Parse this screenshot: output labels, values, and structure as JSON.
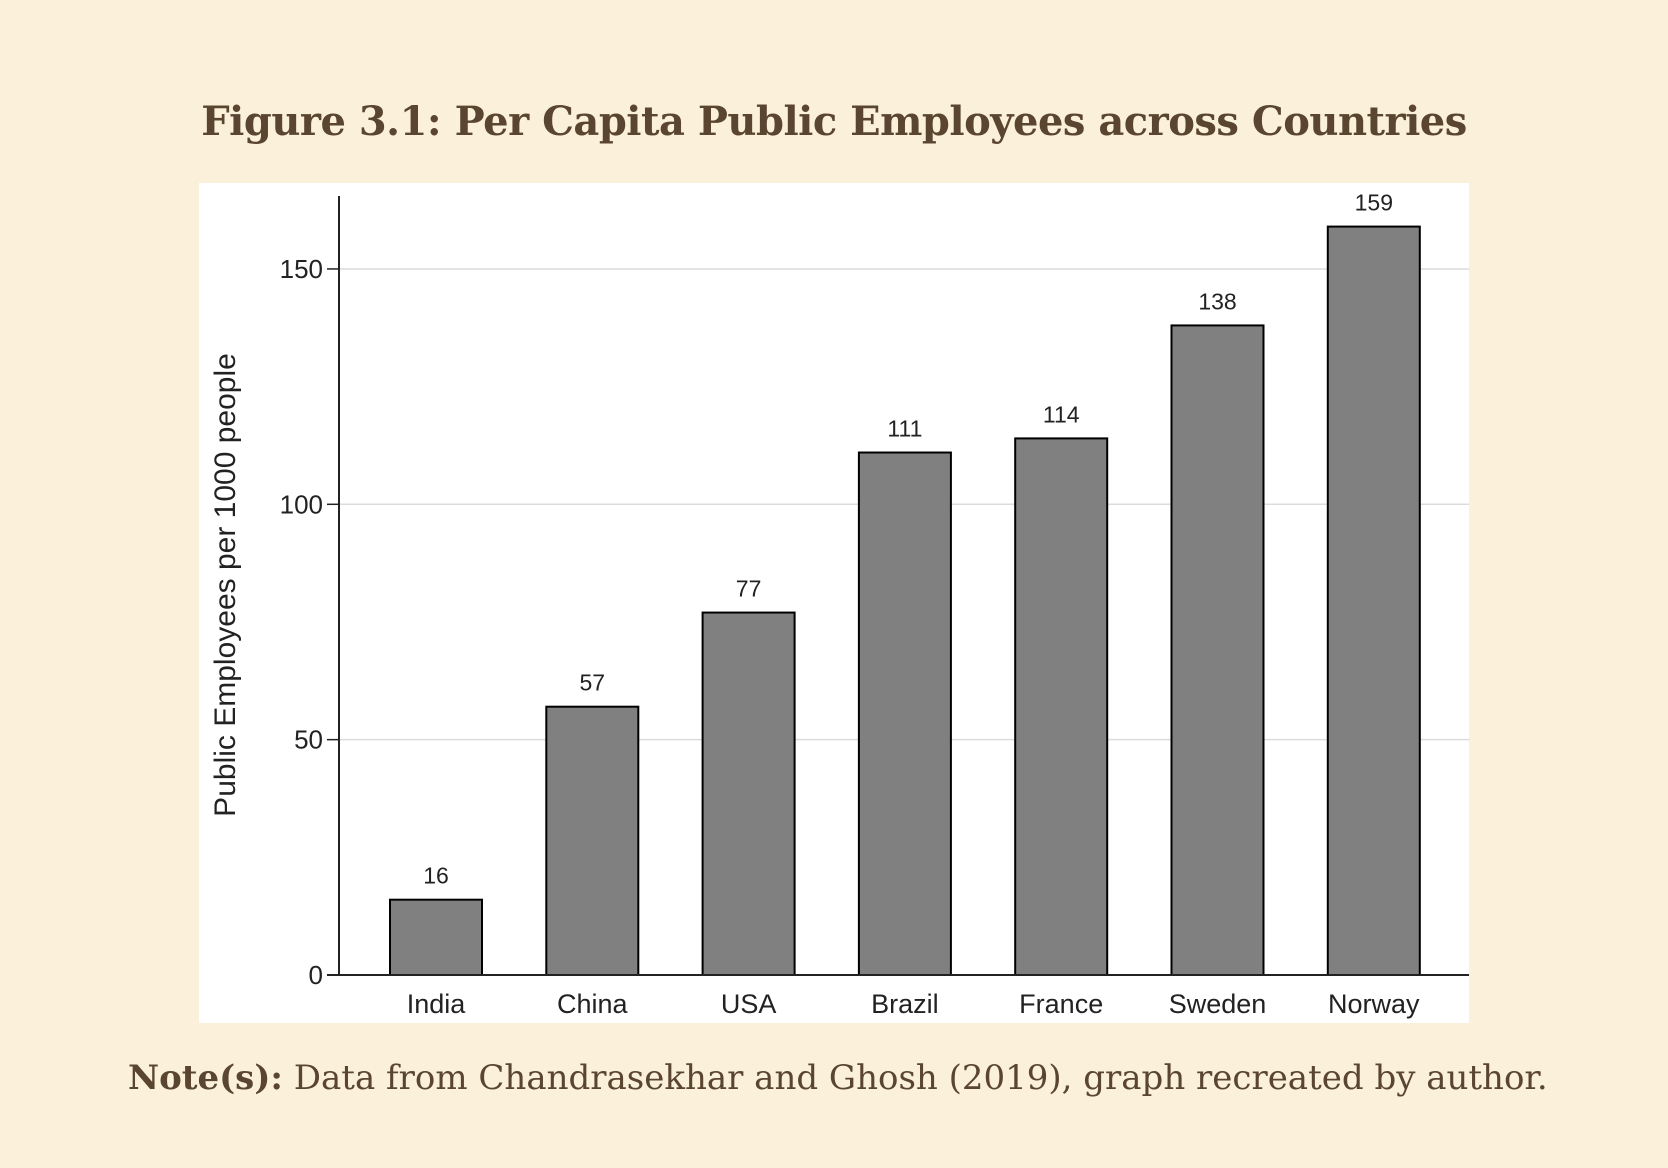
{
  "figure": {
    "title": "Figure 3.1: Per Capita Public Employees across Countries"
  },
  "chart_data": {
    "type": "bar",
    "categories": [
      "India",
      "China",
      "USA",
      "Brazil",
      "France",
      "Sweden",
      "Norway"
    ],
    "values": [
      16,
      57,
      77,
      111,
      114,
      138,
      159
    ],
    "data_labels": [
      "16",
      "57",
      "77",
      "111",
      "114",
      "138",
      "159"
    ],
    "title": "",
    "xlabel": "",
    "ylabel": "Public Employees per 1000 people",
    "ylim": [
      0,
      165
    ],
    "yticks": [
      0,
      50,
      100,
      150
    ],
    "ytick_labels": [
      "0",
      "50",
      "100",
      "150"
    ],
    "grid": "horizontal",
    "bar_color": "#808080",
    "bar_edge_color": "#000000"
  },
  "note": {
    "label": "Note(s):",
    "text": " Data from Chandrasekhar and Ghosh (2019), graph recreated by author."
  }
}
